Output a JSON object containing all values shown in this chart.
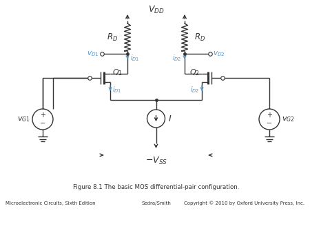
{
  "title": "Figure 8.1 The basic MOS differential-pair configuration.",
  "footer_left": "Microelectronic Circuits, Sixth Edition",
  "footer_center": "Sedra/Smith",
  "footer_right": "Copyright © 2010 by Oxford University Press, Inc.",
  "blue_color": "#5599cc",
  "black_color": "#333333",
  "bg_color": "#ffffff",
  "vdd_label": "$V_{DD}$",
  "vss_label": "$-V_{SS}$",
  "rd_label": "$R_D$",
  "rd2_label": "$R_D$",
  "q1_label": "$Q_1$",
  "q2_label": "$Q_2$",
  "vg1_label": "$v_{G1}$",
  "vg2_label": "$v_{G2}$",
  "vd1_label": "$v_{D1}$",
  "vd2_label": "$v_{D2}$",
  "id1_top_label": "$i_{D1}$",
  "id2_top_label": "$i_{D2}$",
  "id1_bot_label": "$i_{D1}$",
  "id2_bot_label": "$i_{D2}$",
  "I_label": "$I$"
}
